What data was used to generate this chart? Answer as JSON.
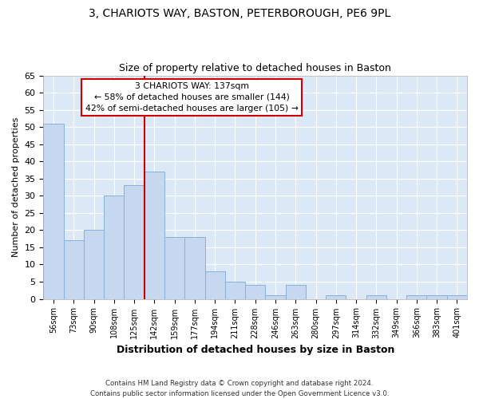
{
  "title1": "3, CHARIOTS WAY, BASTON, PETERBOROUGH, PE6 9PL",
  "title2": "Size of property relative to detached houses in Baston",
  "xlabel": "Distribution of detached houses by size in Baston",
  "ylabel": "Number of detached properties",
  "categories": [
    "56sqm",
    "73sqm",
    "90sqm",
    "108sqm",
    "125sqm",
    "142sqm",
    "159sqm",
    "177sqm",
    "194sqm",
    "211sqm",
    "228sqm",
    "246sqm",
    "263sqm",
    "280sqm",
    "297sqm",
    "314sqm",
    "332sqm",
    "349sqm",
    "366sqm",
    "383sqm",
    "401sqm"
  ],
  "values": [
    51,
    17,
    20,
    30,
    33,
    37,
    18,
    18,
    8,
    5,
    4,
    1,
    4,
    0,
    1,
    0,
    1,
    0,
    1,
    1,
    1
  ],
  "bar_color": "#c5d8f0",
  "bar_edge_color": "#8ab0d8",
  "vline_color": "#cc0000",
  "vline_x_index": 5,
  "ylim": [
    0,
    65
  ],
  "yticks": [
    0,
    5,
    10,
    15,
    20,
    25,
    30,
    35,
    40,
    45,
    50,
    55,
    60,
    65
  ],
  "annotation_line1": "3 CHARIOTS WAY: 137sqm",
  "annotation_line2": "← 58% of detached houses are smaller (144)",
  "annotation_line3": "42% of semi-detached houses are larger (105) →",
  "footer": "Contains HM Land Registry data © Crown copyright and database right 2024.\nContains public sector information licensed under the Open Government Licence v3.0.",
  "fig_bg_color": "#ffffff",
  "plot_bg_color": "#dce8f5"
}
